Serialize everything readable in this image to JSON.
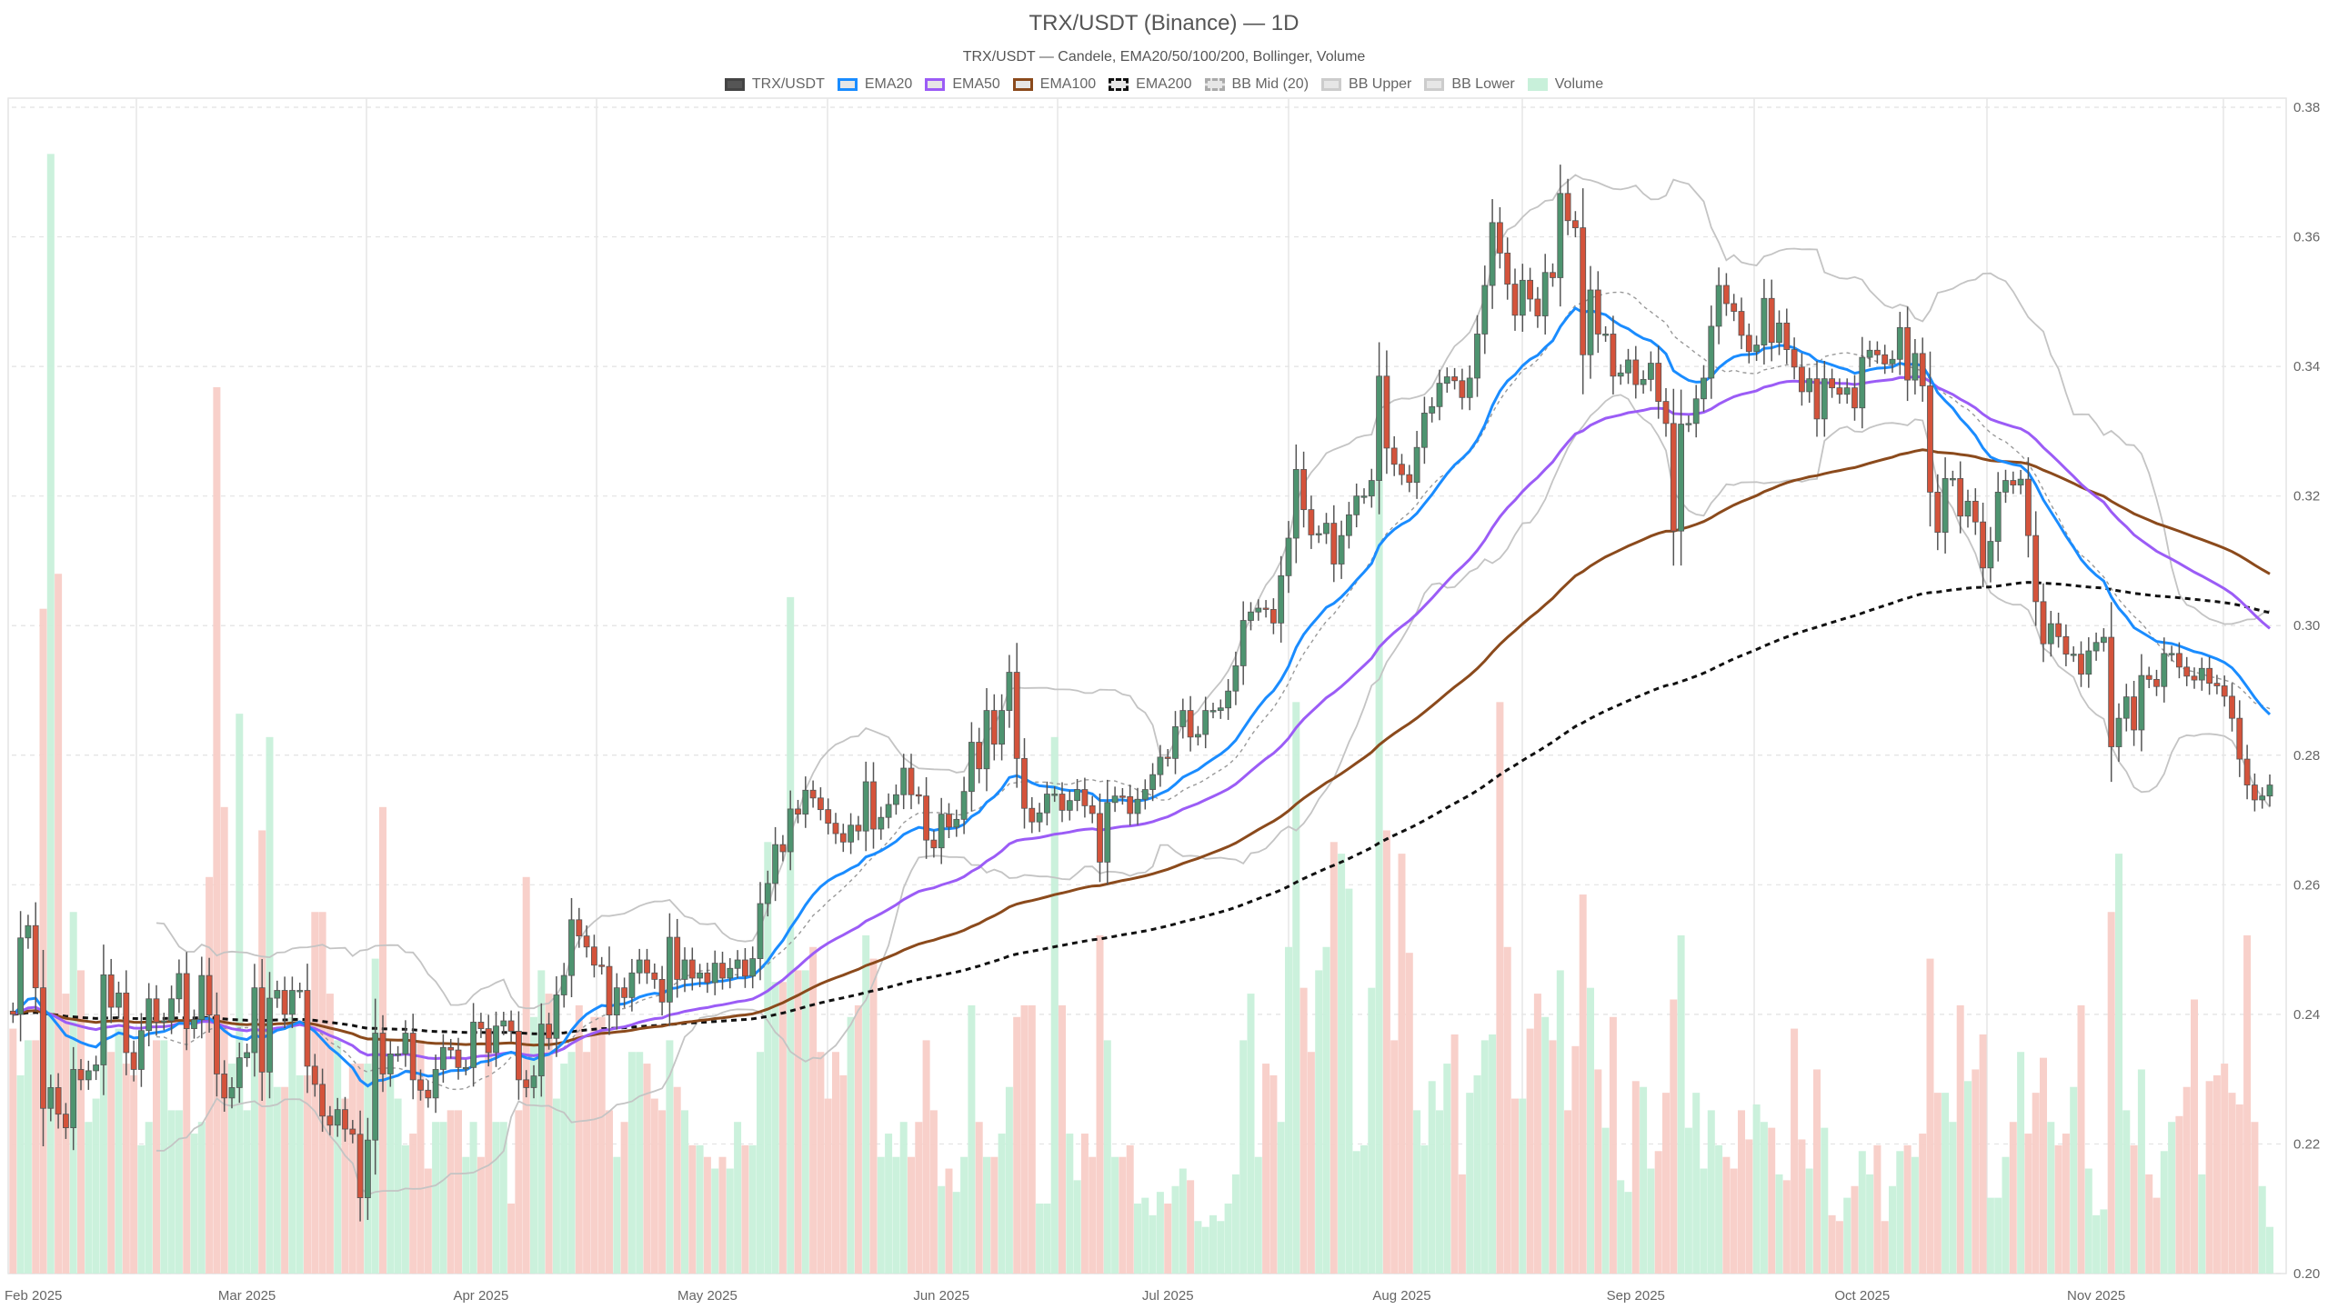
{
  "title": "TRX/USDT (Binance) — 1D",
  "subtitle": "TRX/USDT — Candele, EMA20/50/100/200, Bollinger, Volume",
  "legend": [
    {
      "label": "TRX/USDT",
      "fill": "#555555",
      "border": "#444444",
      "dash": false
    },
    {
      "label": "EMA20",
      "fill": "#e6e6e6",
      "border": "#1a8cff",
      "dash": false
    },
    {
      "label": "EMA50",
      "fill": "#e6e6e6",
      "border": "#9b5cf6",
      "dash": false
    },
    {
      "label": "EMA100",
      "fill": "#e6e6e6",
      "border": "#8b4a1c",
      "dash": false
    },
    {
      "label": "EMA200",
      "fill": "#e6e6e6",
      "border": "#111111",
      "dash": true
    },
    {
      "label": "BB Mid (20)",
      "fill": "#e6e6e6",
      "border": "#aaaaaa",
      "dash": true
    },
    {
      "label": "BB Upper",
      "fill": "#e6e6e6",
      "border": "#cccccc",
      "dash": false
    },
    {
      "label": "BB Lower",
      "fill": "#e6e6e6",
      "border": "#cccccc",
      "dash": false
    },
    {
      "label": "Volume",
      "fill": "#c8f0da",
      "border": "#c8f0da",
      "dash": false
    }
  ],
  "chart_data": {
    "type": "candlestick",
    "interval": "1D",
    "x_start": "2025-01-29",
    "ylim": [
      0.2,
      0.38
    ],
    "yticks": [
      "0.20",
      "0.22",
      "0.24",
      "0.26",
      "0.28",
      "0.30",
      "0.32",
      "0.34",
      "0.36",
      "0.38"
    ],
    "xticks": [
      {
        "label": "Feb 2025",
        "date": "2025-02-01"
      },
      {
        "label": "Mar 2025",
        "date": "2025-03-01"
      },
      {
        "label": "Apr 2025",
        "date": "2025-04-01"
      },
      {
        "label": "May 2025",
        "date": "2025-05-01"
      },
      {
        "label": "Jun 2025",
        "date": "2025-06-01"
      },
      {
        "label": "Jul 2025",
        "date": "2025-07-01"
      },
      {
        "label": "Aug 2025",
        "date": "2025-08-01"
      },
      {
        "label": "Sep 2025",
        "date": "2025-09-01"
      },
      {
        "label": "Oct 2025",
        "date": "2025-10-01"
      },
      {
        "label": "Nov 2025",
        "date": "2025-11-01"
      }
    ],
    "grid": true,
    "legend_position": "top-center",
    "indicators": {
      "ema_periods": [
        20,
        50,
        100,
        200
      ],
      "bb_period": 20,
      "bb_std": 2
    },
    "colors": {
      "up": "#4e9470",
      "down": "#d4533b",
      "wick": "#555555",
      "vol_up": "#c8f0da",
      "vol_down": "#f8cdc7",
      "ema20": "#1a8cff",
      "ema50": "#9b5cf6",
      "ema100": "#8b4a1c",
      "ema200": "#111111",
      "bb_mid": "#999999",
      "bb_band": "#c4c4c4"
    },
    "close": [
      0.24,
      0.2518,
      0.2537,
      0.2441,
      0.2255,
      0.2287,
      0.2246,
      0.2225,
      0.2315,
      0.2299,
      0.2313,
      0.2322,
      0.2461,
      0.2411,
      0.2433,
      0.2341,
      0.2315,
      0.2375,
      0.2424,
      0.2388,
      0.239,
      0.2424,
      0.2463,
      0.2378,
      0.2392,
      0.246,
      0.2399,
      0.2308,
      0.2271,
      0.2287,
      0.2333,
      0.2341,
      0.2441,
      0.2311,
      0.2425,
      0.2437,
      0.24,
      0.2437,
      0.2437,
      0.232,
      0.2292,
      0.2243,
      0.2229,
      0.2253,
      0.2223,
      0.2215,
      0.2117,
      0.2206,
      0.2371,
      0.2308,
      0.2339,
      0.2339,
      0.2371,
      0.2299,
      0.2283,
      0.2271,
      0.2315,
      0.2349,
      0.2345,
      0.2318,
      0.2318,
      0.2388,
      0.2378,
      0.2341,
      0.2382,
      0.239,
      0.2374,
      0.2299,
      0.2287,
      0.2305,
      0.2385,
      0.2363,
      0.243,
      0.246,
      0.2546,
      0.2521,
      0.2504,
      0.2476,
      0.2474,
      0.2399,
      0.2441,
      0.2426,
      0.2464,
      0.2484,
      0.2464,
      0.2454,
      0.2419,
      0.2519,
      0.2454,
      0.2484,
      0.2456,
      0.2464,
      0.2449,
      0.2479,
      0.2456,
      0.2471,
      0.2484,
      0.2459,
      0.2486,
      0.2571,
      0.2602,
      0.2662,
      0.2651,
      0.2717,
      0.2709,
      0.2746,
      0.2734,
      0.2716,
      0.2695,
      0.2679,
      0.2666,
      0.2692,
      0.2683,
      0.2759,
      0.2686,
      0.2704,
      0.2724,
      0.2739,
      0.278,
      0.2739,
      0.2737,
      0.2669,
      0.2657,
      0.2709,
      0.2689,
      0.2701,
      0.2744,
      0.282,
      0.2779,
      0.2869,
      0.2817,
      0.2869,
      0.2928,
      0.2795,
      0.2718,
      0.2697,
      0.2711,
      0.274,
      0.274,
      0.2715,
      0.273,
      0.2747,
      0.2722,
      0.271,
      0.2635,
      0.2727,
      0.2737,
      0.2736,
      0.271,
      0.2732,
      0.2747,
      0.277,
      0.2797,
      0.2795,
      0.2844,
      0.2869,
      0.2828,
      0.2832,
      0.2869,
      0.2869,
      0.2873,
      0.2899,
      0.2938,
      0.3008,
      0.3021,
      0.3027,
      0.3025,
      0.3004,
      0.3077,
      0.3135,
      0.3241,
      0.3179,
      0.314,
      0.3142,
      0.3158,
      0.3095,
      0.3139,
      0.3171,
      0.32,
      0.32,
      0.3224,
      0.3385,
      0.3274,
      0.3249,
      0.3233,
      0.3221,
      0.3275,
      0.3328,
      0.3338,
      0.3374,
      0.3384,
      0.3378,
      0.3352,
      0.3382,
      0.345,
      0.3525,
      0.3622,
      0.3575,
      0.3527,
      0.3479,
      0.3533,
      0.3504,
      0.3478,
      0.3545,
      0.3537,
      0.3667,
      0.3625,
      0.3614,
      0.3418,
      0.3518,
      0.345,
      0.345,
      0.3385,
      0.339,
      0.341,
      0.3372,
      0.338,
      0.3405,
      0.3346,
      0.3312,
      0.3146,
      0.3311,
      0.3312,
      0.335,
      0.3382,
      0.3462,
      0.3525,
      0.3497,
      0.3485,
      0.3448,
      0.3423,
      0.3433,
      0.3505,
      0.3437,
      0.3467,
      0.3426,
      0.3399,
      0.3361,
      0.3381,
      0.3319,
      0.3381,
      0.3367,
      0.3357,
      0.3367,
      0.3336,
      0.3414,
      0.3425,
      0.3418,
      0.3404,
      0.3411,
      0.346,
      0.3379,
      0.342,
      0.337,
      0.3206,
      0.3144,
      0.3227,
      0.3227,
      0.3169,
      0.3192,
      0.316,
      0.3089,
      0.313,
      0.3206,
      0.3224,
      0.3217,
      0.3226,
      0.3139,
      0.3037,
      0.2972,
      0.3003,
      0.2983,
      0.2956,
      0.2956,
      0.2925,
      0.2961,
      0.2974,
      0.2982,
      0.2813,
      0.2857,
      0.289,
      0.2839,
      0.2923,
      0.2917,
      0.2906,
      0.2957,
      0.2957,
      0.2936,
      0.2922,
      0.2916,
      0.2934,
      0.2911,
      0.2907,
      0.2891,
      0.2857,
      0.2794,
      0.2754,
      0.2731,
      0.2737,
      0.2754
    ],
    "volume_relative": [
      0.21,
      0.17,
      0.2,
      0.2,
      0.57,
      0.96,
      0.6,
      0.24,
      0.31,
      0.26,
      0.13,
      0.15,
      0.21,
      0.19,
      0.21,
      0.18,
      0.17,
      0.11,
      0.13,
      0.2,
      0.2,
      0.14,
      0.14,
      0.21,
      0.12,
      0.13,
      0.34,
      0.76,
      0.4,
      0.18,
      0.48,
      0.14,
      0.21,
      0.38,
      0.46,
      0.16,
      0.16,
      0.22,
      0.17,
      0.17,
      0.31,
      0.31,
      0.24,
      0.2,
      0.15,
      0.18,
      0.18,
      0.18,
      0.27,
      0.4,
      0.17,
      0.15,
      0.11,
      0.12,
      0.2,
      0.09,
      0.13,
      0.13,
      0.14,
      0.14,
      0.1,
      0.13,
      0.1,
      0.21,
      0.13,
      0.13,
      0.06,
      0.14,
      0.34,
      0.22,
      0.26,
      0.24,
      0.15,
      0.18,
      0.19,
      0.23,
      0.19,
      0.22,
      0.22,
      0.14,
      0.1,
      0.13,
      0.19,
      0.19,
      0.18,
      0.15,
      0.14,
      0.2,
      0.16,
      0.14,
      0.11,
      0.11,
      0.1,
      0.09,
      0.1,
      0.09,
      0.13,
      0.11,
      0.11,
      0.19,
      0.37,
      0.25,
      0.25,
      0.58,
      0.26,
      0.26,
      0.28,
      0.19,
      0.15,
      0.19,
      0.17,
      0.22,
      0.23,
      0.29,
      0.27,
      0.1,
      0.12,
      0.1,
      0.13,
      0.1,
      0.13,
      0.2,
      0.14,
      0.075,
      0.09,
      0.07,
      0.1,
      0.23,
      0.13,
      0.1,
      0.1,
      0.12,
      0.16,
      0.22,
      0.23,
      0.23,
      0.06,
      0.06,
      0.46,
      0.23,
      0.12,
      0.08,
      0.12,
      0.1,
      0.29,
      0.2,
      0.1,
      0.1,
      0.11,
      0.06,
      0.065,
      0.05,
      0.07,
      0.06,
      0.075,
      0.09,
      0.08,
      0.045,
      0.04,
      0.05,
      0.045,
      0.06,
      0.085,
      0.2,
      0.24,
      0.1,
      0.18,
      0.17,
      0.13,
      0.28,
      0.49,
      0.245,
      0.19,
      0.26,
      0.28,
      0.37,
      0.36,
      0.33,
      0.105,
      0.11,
      0.245,
      0.68,
      0.38,
      0.2,
      0.36,
      0.275,
      0.14,
      0.11,
      0.165,
      0.14,
      0.18,
      0.205,
      0.085,
      0.155,
      0.17,
      0.2,
      0.205,
      0.49,
      0.28,
      0.15,
      0.15,
      0.21,
      0.24,
      0.22,
      0.2,
      0.26,
      0.14,
      0.195,
      0.325,
      0.245,
      0.175,
      0.125,
      0.22,
      0.08,
      0.07,
      0.165,
      0.16,
      0.09,
      0.105,
      0.155,
      0.235,
      0.29,
      0.125,
      0.155,
      0.09,
      0.14,
      0.11,
      0.1,
      0.09,
      0.14,
      0.115,
      0.145,
      0.13,
      0.125,
      0.085,
      0.08,
      0.21,
      0.115,
      0.09,
      0.175,
      0.125,
      0.05,
      0.045,
      0.065,
      0.075,
      0.105,
      0.085,
      0.11,
      0.045,
      0.075,
      0.105,
      0.11,
      0.1,
      0.12,
      0.27,
      0.155,
      0.155,
      0.13,
      0.23,
      0.165,
      0.175,
      0.205,
      0.065,
      0.065,
      0.1,
      0.13,
      0.19,
      0.12,
      0.155,
      0.185,
      0.13,
      0.11,
      0.12,
      0.16,
      0.23,
      0.09,
      0.05,
      0.055,
      0.31,
      0.36,
      0.14,
      0.11,
      0.175,
      0.085,
      0.065,
      0.105,
      0.13,
      0.135,
      0.16,
      0.235,
      0.085,
      0.165,
      0.17,
      0.18,
      0.155,
      0.145,
      0.29,
      0.13,
      0.075,
      0.04
    ]
  }
}
